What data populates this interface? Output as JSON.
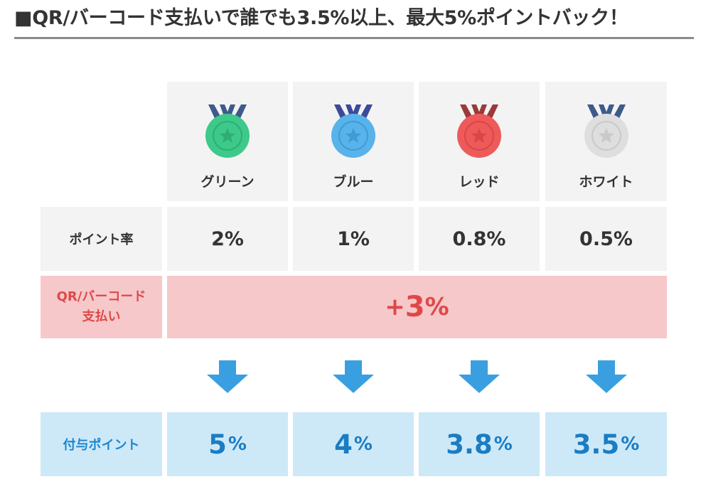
{
  "heading": "■QR/バーコード支払いで誰でも3.5%以上、最大5%ポイントバック！",
  "ranks": [
    {
      "name": "グリーン",
      "color": "#3dc98a",
      "ring": "#2fae74",
      "ribbon": "#3d5a8a",
      "rate": "2%",
      "final_num": "5",
      "final_unit": "%"
    },
    {
      "name": "ブルー",
      "color": "#57b3ea",
      "ring": "#3f9bd6",
      "ribbon": "#3d4a9a",
      "rate": "1%",
      "final_num": "4",
      "final_unit": "%"
    },
    {
      "name": "レッド",
      "color": "#ee5a5a",
      "ring": "#d94646",
      "ribbon": "#9a3a3a",
      "rate": "0.8%",
      "final_num": "3.8",
      "final_unit": "%"
    },
    {
      "name": "ホワイト",
      "color": "#dedede",
      "ring": "#c9c9c9",
      "ribbon": "#3d5a8a",
      "rate": "0.5%",
      "final_num": "3.5",
      "final_unit": "%"
    }
  ],
  "point_rate_label": "ポイント率",
  "qr_label_line1": "QR/バーコード",
  "qr_label_line2": "支払い",
  "bonus_sign": "+",
  "bonus_num": "3",
  "bonus_unit": "%",
  "final_label": "付与ポイント",
  "arrow_color": "#3a9fe0",
  "icons": {
    "medal": "medal-icon",
    "arrow": "arrow-down-icon"
  }
}
